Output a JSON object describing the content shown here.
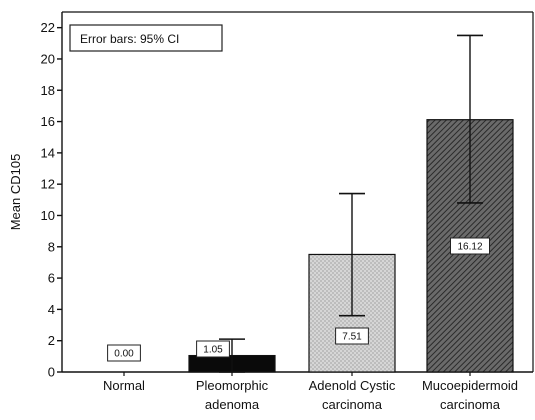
{
  "chart_data": {
    "type": "bar",
    "ylabel": "Mean CD105",
    "xlabel": "",
    "ylim": [
      0,
      23
    ],
    "yticks": [
      0,
      2,
      4,
      6,
      8,
      10,
      12,
      14,
      16,
      18,
      20,
      22
    ],
    "legend_text": "Error bars: 95% CI",
    "legend_position": "top-left",
    "grid": false,
    "categories": [
      [
        "Normal"
      ],
      [
        "Pleomorphic",
        "adenoma"
      ],
      [
        "Adenold Cystic",
        "carcinoma"
      ],
      [
        "Mucoepidermoid",
        "carcinoma"
      ]
    ],
    "values": [
      0.0,
      1.05,
      7.51,
      16.12
    ],
    "value_labels": [
      "0.00",
      "1.05",
      "7.51",
      "16.12"
    ],
    "error_low": [
      0.0,
      0.0,
      3.6,
      10.8
    ],
    "error_high": [
      0.0,
      2.1,
      11.4,
      21.5
    ],
    "bar_fills": [
      "none",
      "solid-black",
      "checker-light-gray",
      "hatch-dark"
    ],
    "colors": {
      "axis": "#111111",
      "black_bar": "#0a0a0a",
      "light_bar": "#cfcfcf",
      "dark_bar": "#555555"
    }
  }
}
